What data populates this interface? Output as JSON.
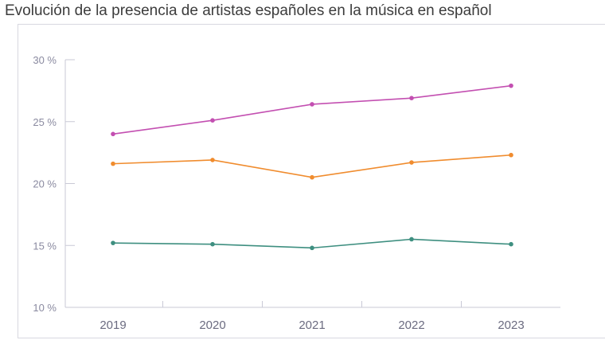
{
  "title": "Evolución de la presencia de artistas españoles en la música en español",
  "chart_data": {
    "type": "line",
    "categories": [
      "2019",
      "2020",
      "2021",
      "2022",
      "2023"
    ],
    "ylim": [
      10,
      30
    ],
    "yticks": [
      10,
      15,
      20,
      25,
      30
    ],
    "ytick_labels": [
      "10 %",
      "15 %",
      "20 %",
      "25 %",
      "30 %"
    ],
    "grid": false,
    "legend": "none",
    "series": [
      {
        "color": "#c34fb1",
        "values": [
          24.0,
          25.1,
          26.4,
          26.9,
          27.9
        ]
      },
      {
        "color": "#f08c2e",
        "values": [
          21.6,
          21.9,
          20.5,
          21.7,
          22.3
        ]
      },
      {
        "color": "#3e8f80",
        "values": [
          15.2,
          15.1,
          14.8,
          15.5,
          15.1
        ]
      }
    ]
  }
}
